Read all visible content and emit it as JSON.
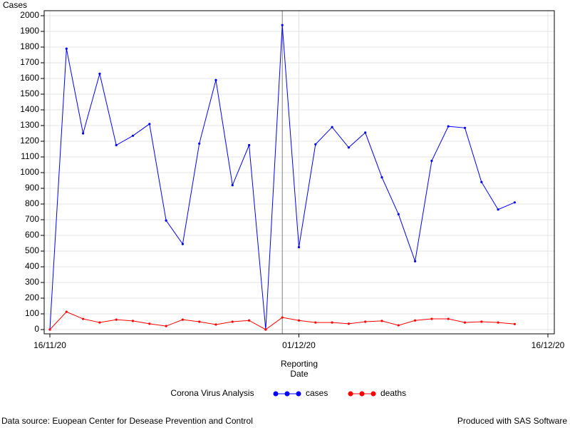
{
  "chart_data": {
    "type": "line",
    "y_label": "Cases",
    "x_label": [
      "Reporting",
      "Date"
    ],
    "legend_title": "Corona Virus Analysis",
    "footnote_left": "Data source: Euopean Center for Desease Prevention and Control",
    "footnote_right": "Produced with SAS Software",
    "x": [
      "2020-11-16",
      "2020-11-17",
      "2020-11-18",
      "2020-11-19",
      "2020-11-20",
      "2020-11-21",
      "2020-11-22",
      "2020-11-23",
      "2020-11-24",
      "2020-11-25",
      "2020-11-26",
      "2020-11-27",
      "2020-11-28",
      "2020-11-29",
      "2020-11-30",
      "2020-12-01",
      "2020-12-02",
      "2020-12-03",
      "2020-12-04",
      "2020-12-05",
      "2020-12-06",
      "2020-12-07",
      "2020-12-08",
      "2020-12-09",
      "2020-12-10",
      "2020-12-11",
      "2020-12-12",
      "2020-12-13",
      "2020-12-14"
    ],
    "series": [
      {
        "name": "cases",
        "color": "#0000ff",
        "values": [
          0,
          1790,
          1250,
          1630,
          1175,
          1235,
          1310,
          695,
          545,
          1185,
          1590,
          920,
          1175,
          0,
          1940,
          525,
          1180,
          1290,
          1160,
          1255,
          970,
          735,
          435,
          1075,
          1295,
          1285,
          940,
          765,
          810
        ]
      },
      {
        "name": "deaths",
        "color": "#ff0000",
        "values": [
          0,
          113,
          68,
          45,
          63,
          55,
          37,
          22,
          63,
          50,
          32,
          50,
          58,
          0,
          77,
          58,
          45,
          45,
          37,
          50,
          55,
          27,
          58,
          68,
          68,
          45,
          50,
          45,
          35
        ]
      }
    ],
    "xlim": [
      "2020-11-16",
      "2020-12-16"
    ],
    "xticks": [
      {
        "value": "2020-11-16",
        "label": "16/11/20"
      },
      {
        "value": "2020-12-01",
        "label": "01/12/20"
      },
      {
        "value": "2020-12-16",
        "label": "16/12/20"
      }
    ],
    "ylim": [
      0,
      2000
    ],
    "yticks": [
      0,
      100,
      200,
      300,
      400,
      500,
      600,
      700,
      800,
      900,
      1000,
      1100,
      1200,
      1300,
      1400,
      1500,
      1600,
      1700,
      1800,
      1900,
      2000
    ],
    "reference_line": "2020-11-30",
    "grid": true
  }
}
